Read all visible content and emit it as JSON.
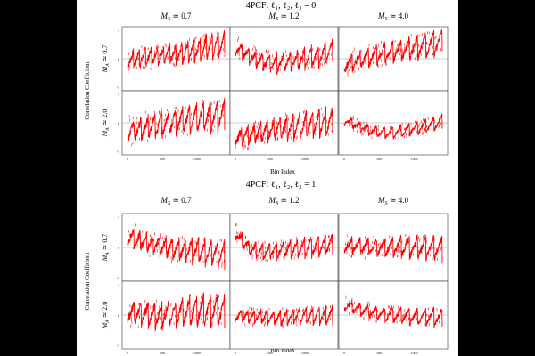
{
  "chart_data": [
    {
      "type": "line",
      "title": "4PCF: ℓ₁, ℓ₂, ℓ₃ = 0",
      "column_labels": [
        "M_S ≃ 0.7",
        "M_S ≃ 1.2",
        "M_S ≃ 4.0"
      ],
      "row_labels": [
        "M_A ≃ 0.7",
        "M_A ≃ 2.0"
      ],
      "xlabel": "Bin Index",
      "ylabel": "Correlation Coefficient",
      "xlim": [
        0,
        1400
      ],
      "x_ticks": [
        "0",
        "500",
        "1000"
      ],
      "x_ticks_mid": [
        "0",
        "500",
        "1000"
      ],
      "ylim": [
        -1,
        1
      ],
      "y_ticks": [
        "1",
        "0",
        "-1"
      ],
      "series_color": "#ff0000",
      "panels": [
        {
          "row": 0,
          "col": 0,
          "trend": [
            -0.05,
            0.05,
            0.1,
            0.15,
            0.2,
            0.3,
            0.45,
            0.55
          ],
          "amplitude": 0.45,
          "teeth": 16
        },
        {
          "row": 0,
          "col": 1,
          "trend": [
            0.4,
            0.1,
            -0.1,
            -0.15,
            -0.1,
            0.0,
            0.1,
            0.3
          ],
          "amplitude": 0.4,
          "teeth": 14
        },
        {
          "row": 0,
          "col": 2,
          "trend": [
            -0.2,
            -0.05,
            0.1,
            0.2,
            0.3,
            0.4,
            0.5,
            0.6
          ],
          "amplitude": 0.45,
          "teeth": 12
        },
        {
          "row": 1,
          "col": 0,
          "trend": [
            -0.3,
            -0.2,
            -0.1,
            0.0,
            0.1,
            0.2,
            0.25,
            0.3
          ],
          "amplitude": 0.55,
          "teeth": 14
        },
        {
          "row": 1,
          "col": 1,
          "trend": [
            -0.5,
            -0.4,
            -0.3,
            -0.2,
            -0.15,
            -0.05,
            0.0,
            0.05
          ],
          "amplitude": 0.5,
          "teeth": 15
        },
        {
          "row": 1,
          "col": 2,
          "trend": [
            0.1,
            -0.1,
            -0.3,
            -0.35,
            -0.3,
            -0.2,
            -0.1,
            0.05
          ],
          "amplitude": 0.25,
          "teeth": 12
        }
      ]
    },
    {
      "type": "line",
      "title": "4PCF: ℓ₁, ℓ₂, ℓ₃ = 1",
      "column_labels": [
        "M_S ≃ 0.7",
        "M_S ≃ 1.2",
        "M_S ≃ 4.0"
      ],
      "row_labels": [
        "M_A ≃ 0.7",
        "M_A ≃ 2.0"
      ],
      "xlabel": "Bin Index",
      "ylabel": "Correlation Coefficient",
      "xlim": [
        0,
        1400
      ],
      "x_ticks": [
        "0",
        "500",
        "1000"
      ],
      "ylim": [
        -1,
        1
      ],
      "y_ticks": [
        "1",
        "0",
        "-1"
      ],
      "series_color": "#ff0000",
      "panels": [
        {
          "row": 0,
          "col": 0,
          "trend": [
            0.4,
            0.2,
            0.1,
            0.0,
            -0.1,
            -0.1,
            -0.15,
            -0.2
          ],
          "amplitude": 0.45,
          "teeth": 15
        },
        {
          "row": 0,
          "col": 1,
          "trend": [
            0.5,
            -0.05,
            -0.15,
            -0.1,
            -0.05,
            0.0,
            0.05,
            0.1
          ],
          "amplitude": 0.35,
          "teeth": 14
        },
        {
          "row": 0,
          "col": 2,
          "trend": [
            0.1,
            0.05,
            0.0,
            0.0,
            0.05,
            0.0,
            0.0,
            -0.05
          ],
          "amplitude": 0.4,
          "teeth": 12
        },
        {
          "row": 1,
          "col": 0,
          "trend": [
            0.1,
            0.05,
            0.0,
            0.05,
            0.1,
            0.15,
            0.2,
            0.1
          ],
          "amplitude": 0.55,
          "teeth": 14
        },
        {
          "row": 1,
          "col": 1,
          "trend": [
            0.0,
            -0.05,
            -0.05,
            -0.1,
            -0.05,
            0.0,
            0.0,
            0.0
          ],
          "amplitude": 0.3,
          "teeth": 15
        },
        {
          "row": 1,
          "col": 2,
          "trend": [
            0.35,
            0.2,
            0.1,
            0.0,
            0.0,
            -0.05,
            -0.05,
            -0.1
          ],
          "amplitude": 0.3,
          "teeth": 12
        }
      ]
    }
  ]
}
